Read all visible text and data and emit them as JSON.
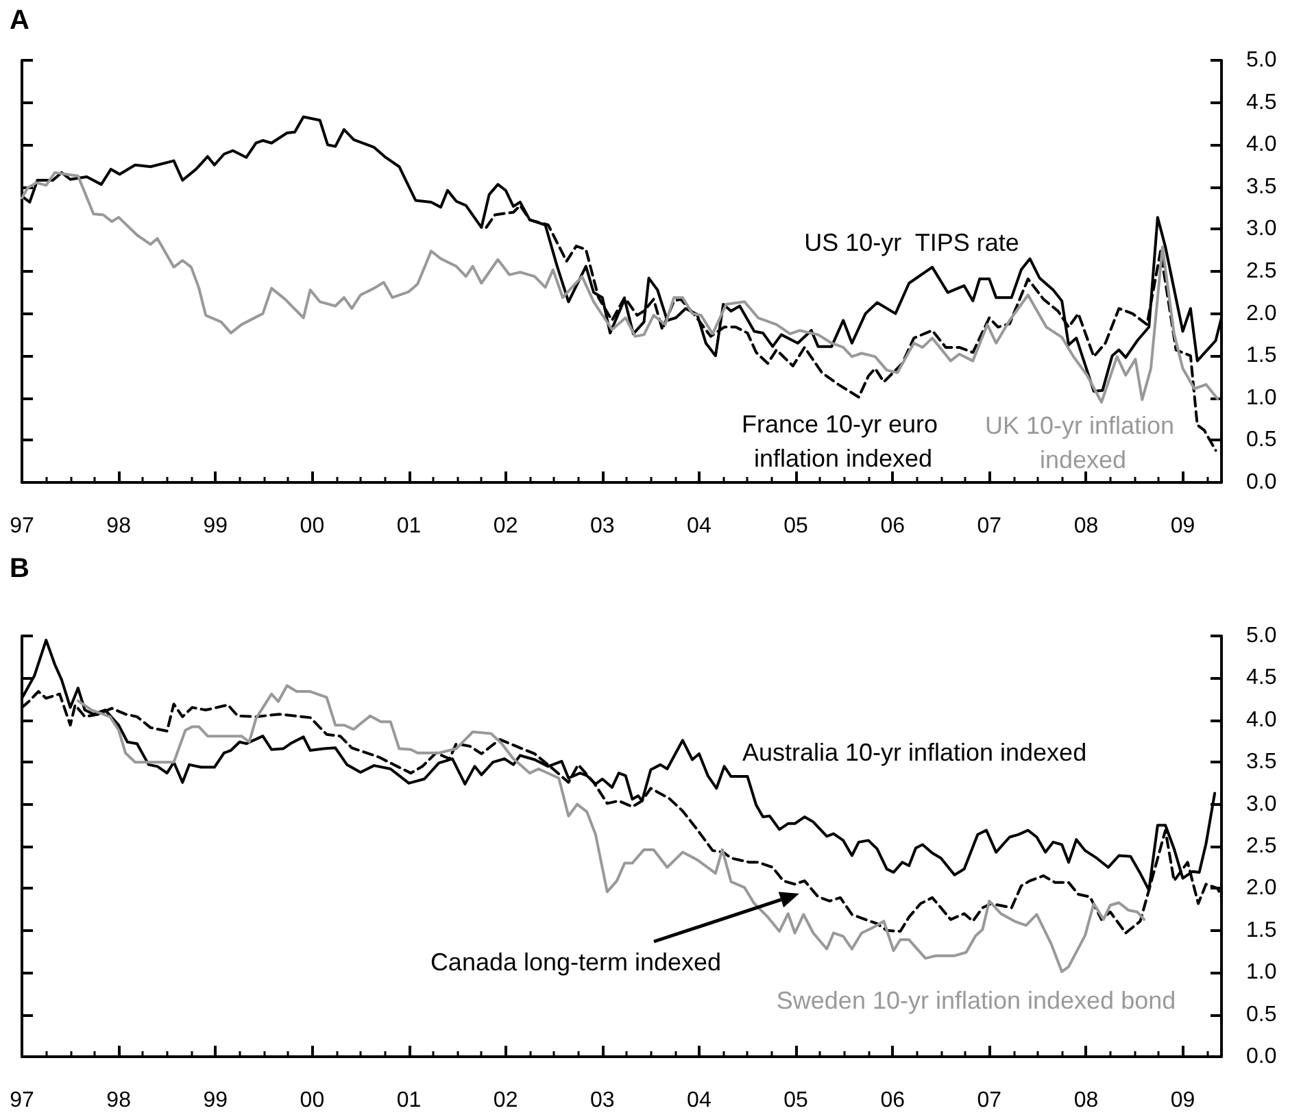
{
  "chart_data": [
    {
      "type": "line",
      "title": "A",
      "xlim": [
        1997,
        2009.4
      ],
      "xticks": [
        {
          "value": 1997,
          "label": "97"
        },
        {
          "value": 1998,
          "label": "98"
        },
        {
          "value": 1999,
          "label": "99"
        },
        {
          "value": 2000,
          "label": "00"
        },
        {
          "value": 2001,
          "label": "01"
        },
        {
          "value": 2002,
          "label": "02"
        },
        {
          "value": 2003,
          "label": "03"
        },
        {
          "value": 2004,
          "label": "04"
        },
        {
          "value": 2005,
          "label": "05"
        },
        {
          "value": 2006,
          "label": "06"
        },
        {
          "value": 2007,
          "label": "07"
        },
        {
          "value": 2008,
          "label": "08"
        },
        {
          "value": 2009,
          "label": "09"
        }
      ],
      "ylim": [
        0,
        5
      ],
      "yticks": [
        {
          "value": 0,
          "label": "0.0"
        },
        {
          "value": 0.5,
          "label": "0.5"
        },
        {
          "value": 1,
          "label": "1.0"
        },
        {
          "value": 1.5,
          "label": "1.5"
        },
        {
          "value": 2,
          "label": "2.0"
        },
        {
          "value": 2.5,
          "label": "2.5"
        },
        {
          "value": 3,
          "label": "3.0"
        },
        {
          "value": 3.5,
          "label": "3.5"
        },
        {
          "value": 4,
          "label": "4.0"
        },
        {
          "value": 4.5,
          "label": "4.5"
        },
        {
          "value": 5,
          "label": "5.0"
        }
      ],
      "grid": false,
      "legend": false,
      "series": [
        {
          "name": "US 10-yr  TIPS rate",
          "color": "#000000",
          "line_style": "solid",
          "x": [
            1997.0,
            1997.08,
            1997.16,
            1997.32,
            1997.41,
            1997.5,
            1997.67,
            1997.82,
            1997.92,
            1998.01,
            1998.17,
            1998.33,
            1998.57,
            1998.66,
            1998.8,
            1998.92,
            1998.99,
            1999.09,
            1999.18,
            1999.32,
            1999.42,
            1999.49,
            1999.58,
            1999.74,
            1999.82,
            1999.91,
            2000.08,
            2000.16,
            2000.24,
            2000.33,
            2000.43,
            2000.64,
            2000.76,
            2000.9,
            2001.07,
            2001.23,
            2001.33,
            2001.4,
            2001.49,
            2001.59,
            2001.75,
            2001.83,
            2001.92,
            2002.0,
            2002.08,
            2002.15,
            2002.25,
            2002.41,
            2002.53,
            2002.65,
            2002.83,
            2002.91,
            2003.0,
            2003.08,
            2003.23,
            2003.32,
            2003.43,
            2003.48,
            2003.57,
            2003.67,
            2003.76,
            2003.86,
            2003.98,
            2004.07,
            2004.17,
            2004.25,
            2004.33,
            2004.42,
            2004.57,
            2004.66,
            2004.76,
            2004.85,
            2005.02,
            2005.16,
            2005.23,
            2005.37,
            2005.49,
            2005.58,
            2005.72,
            2005.84,
            2006.03,
            2006.17,
            2006.41,
            2006.57,
            2006.74,
            2006.83,
            2006.9,
            2007.0,
            2007.07,
            2007.23,
            2007.33,
            2007.42,
            2007.52,
            2007.66,
            2007.75,
            2007.82,
            2007.9,
            2008.08,
            2008.17,
            2008.27,
            2008.34,
            2008.41,
            2008.53,
            2008.65,
            2008.74,
            2008.82,
            2009.0,
            2009.08,
            2009.15,
            2009.34,
            2009.4
          ],
          "values": [
            3.39,
            3.32,
            3.58,
            3.58,
            3.67,
            3.59,
            3.62,
            3.53,
            3.71,
            3.65,
            3.76,
            3.74,
            3.81,
            3.58,
            3.71,
            3.86,
            3.76,
            3.89,
            3.93,
            3.85,
            4.02,
            4.05,
            4.02,
            4.14,
            4.15,
            4.33,
            4.29,
            4.0,
            3.98,
            4.18,
            4.06,
            3.97,
            3.85,
            3.74,
            3.34,
            3.32,
            3.26,
            3.46,
            3.33,
            3.28,
            3.02,
            3.41,
            3.53,
            3.46,
            3.27,
            3.32,
            3.11,
            3.05,
            2.57,
            2.14,
            2.56,
            2.25,
            2.19,
            1.77,
            2.17,
            1.76,
            1.9,
            2.42,
            2.28,
            1.92,
            1.95,
            2.06,
            1.99,
            1.65,
            1.5,
            2.11,
            2.03,
            2.09,
            1.79,
            1.77,
            1.61,
            1.75,
            1.65,
            1.8,
            1.61,
            1.61,
            1.92,
            1.65,
            2.0,
            2.13,
            2.0,
            2.36,
            2.55,
            2.25,
            2.33,
            2.15,
            2.41,
            2.41,
            2.19,
            2.19,
            2.52,
            2.65,
            2.42,
            2.28,
            2.15,
            1.63,
            1.71,
            1.08,
            1.09,
            1.5,
            1.57,
            1.48,
            1.68,
            1.84,
            3.14,
            2.79,
            1.79,
            2.06,
            1.44,
            1.68,
            1.95
          ]
        },
        {
          "name": "France 10-yr euro inflation indexed",
          "color": "#000000",
          "line_style": "dashed",
          "x": [
            2001.8,
            2001.89,
            2002.08,
            2002.15,
            2002.25,
            2002.44,
            2002.63,
            2002.73,
            2002.83,
            2002.96,
            2003.1,
            2003.23,
            2003.36,
            2003.43,
            2003.53,
            2003.62,
            2003.74,
            2003.81,
            2003.95,
            2004.12,
            2004.26,
            2004.38,
            2004.5,
            2004.59,
            2004.71,
            2004.8,
            2004.97,
            2005.09,
            2005.27,
            2005.44,
            2005.65,
            2005.75,
            2005.82,
            2005.91,
            2006.1,
            2006.22,
            2006.41,
            2006.55,
            2006.69,
            2006.83,
            2007.0,
            2007.09,
            2007.21,
            2007.4,
            2007.56,
            2007.71,
            2007.82,
            2007.92,
            2008.08,
            2008.2,
            2008.34,
            2008.48,
            2008.63,
            2008.77,
            2008.93,
            2009.08,
            2009.15,
            2009.22,
            2009.34
          ],
          "values": [
            3.02,
            3.17,
            3.2,
            3.28,
            3.11,
            3.05,
            2.62,
            2.8,
            2.76,
            2.19,
            1.92,
            2.19,
            1.98,
            2.03,
            2.17,
            1.81,
            2.15,
            2.17,
            1.99,
            1.73,
            1.84,
            1.84,
            1.77,
            1.54,
            1.41,
            1.57,
            1.38,
            1.6,
            1.3,
            1.16,
            1.01,
            1.26,
            1.35,
            1.19,
            1.41,
            1.71,
            1.8,
            1.6,
            1.6,
            1.54,
            1.95,
            1.84,
            1.88,
            2.41,
            2.17,
            2.03,
            1.84,
            2.0,
            1.49,
            1.65,
            2.06,
            2.0,
            1.87,
            2.74,
            1.57,
            1.5,
            0.68,
            0.62,
            0.38
          ]
        },
        {
          "name": "UK 10-yr inflation indexed",
          "color": "#999999",
          "line_style": "solid",
          "x": [
            1997.0,
            1997.06,
            1997.15,
            1997.25,
            1997.34,
            1997.58,
            1997.74,
            1997.84,
            1997.93,
            1998.0,
            1998.19,
            1998.33,
            1998.4,
            1998.57,
            1998.66,
            1998.75,
            1998.83,
            1998.9,
            1999.06,
            1999.16,
            1999.27,
            1999.49,
            1999.58,
            1999.72,
            1999.91,
            1999.98,
            2000.08,
            2000.24,
            2000.33,
            2000.41,
            2000.5,
            2000.64,
            2000.74,
            2000.83,
            2001.0,
            2001.09,
            2001.23,
            2001.33,
            2001.49,
            2001.59,
            2001.66,
            2001.75,
            2001.92,
            2002.04,
            2002.15,
            2002.3,
            2002.41,
            2002.49,
            2002.59,
            2002.79,
            2002.91,
            2003.1,
            2003.24,
            2003.34,
            2003.43,
            2003.53,
            2003.65,
            2003.74,
            2003.83,
            2003.93,
            2004.02,
            2004.14,
            2004.28,
            2004.47,
            2004.61,
            2004.8,
            2004.94,
            2005.04,
            2005.23,
            2005.37,
            2005.49,
            2005.58,
            2005.68,
            2005.82,
            2005.94,
            2006.05,
            2006.22,
            2006.31,
            2006.41,
            2006.6,
            2006.69,
            2006.83,
            2006.98,
            2007.07,
            2007.21,
            2007.4,
            2007.59,
            2007.75,
            2007.87,
            2008.01,
            2008.16,
            2008.32,
            2008.41,
            2008.51,
            2008.58,
            2008.67,
            2008.79,
            2008.91,
            2009.0,
            2009.12,
            2009.24,
            2009.36
          ],
          "values": [
            3.37,
            3.49,
            3.55,
            3.52,
            3.67,
            3.63,
            3.18,
            3.17,
            3.09,
            3.14,
            2.93,
            2.82,
            2.89,
            2.55,
            2.63,
            2.55,
            2.3,
            1.98,
            1.9,
            1.77,
            1.87,
            2.0,
            2.3,
            2.17,
            1.95,
            2.28,
            2.14,
            2.09,
            2.19,
            2.06,
            2.22,
            2.3,
            2.37,
            2.19,
            2.26,
            2.35,
            2.74,
            2.65,
            2.56,
            2.44,
            2.56,
            2.36,
            2.64,
            2.46,
            2.49,
            2.44,
            2.31,
            2.52,
            2.19,
            2.44,
            2.14,
            1.81,
            1.95,
            1.73,
            1.75,
            1.98,
            1.87,
            2.19,
            2.19,
            2.0,
            1.98,
            1.76,
            2.11,
            2.14,
            1.95,
            1.87,
            1.76,
            1.8,
            1.75,
            1.65,
            1.6,
            1.49,
            1.53,
            1.49,
            1.33,
            1.3,
            1.65,
            1.6,
            1.71,
            1.44,
            1.52,
            1.44,
            1.87,
            1.65,
            1.92,
            2.22,
            1.84,
            1.72,
            1.49,
            1.27,
            0.95,
            1.49,
            1.27,
            1.46,
            0.98,
            1.35,
            2.79,
            1.76,
            1.35,
            1.11,
            1.16,
            0.99
          ]
        }
      ]
    },
    {
      "type": "line",
      "title": "B",
      "xlim": [
        1997,
        2009.4
      ],
      "xticks": [
        {
          "value": 1997,
          "label": "97"
        },
        {
          "value": 1998,
          "label": "98"
        },
        {
          "value": 1999,
          "label": "99"
        },
        {
          "value": 2000,
          "label": "00"
        },
        {
          "value": 2001,
          "label": "01"
        },
        {
          "value": 2002,
          "label": "02"
        },
        {
          "value": 2003,
          "label": "03"
        },
        {
          "value": 2004,
          "label": "04"
        },
        {
          "value": 2005,
          "label": "05"
        },
        {
          "value": 2006,
          "label": "06"
        },
        {
          "value": 2007,
          "label": "07"
        },
        {
          "value": 2008,
          "label": "08"
        },
        {
          "value": 2009,
          "label": "09"
        }
      ],
      "ylim": [
        0,
        5
      ],
      "yticks": [
        {
          "value": 0,
          "label": "0.0"
        },
        {
          "value": 0.5,
          "label": "0.5"
        },
        {
          "value": 1,
          "label": "1.0"
        },
        {
          "value": 1.5,
          "label": "1.5"
        },
        {
          "value": 2,
          "label": "2.0"
        },
        {
          "value": 2.5,
          "label": "2.5"
        },
        {
          "value": 3,
          "label": "3.0"
        },
        {
          "value": 3.5,
          "label": "3.5"
        },
        {
          "value": 4,
          "label": "4.0"
        },
        {
          "value": 4.5,
          "label": "4.5"
        },
        {
          "value": 5,
          "label": "5.0"
        }
      ],
      "grid": false,
      "legend": false,
      "series": [
        {
          "name": "Australia 10-yr inflation indexed",
          "color": "#000000",
          "line_style": "solid",
          "x": [
            1997.0,
            1997.13,
            1997.25,
            1997.34,
            1997.41,
            1997.5,
            1997.58,
            1997.65,
            1997.74,
            1997.86,
            1998.0,
            1998.09,
            1998.19,
            1998.31,
            1998.4,
            1998.5,
            1998.57,
            1998.66,
            1998.73,
            1998.85,
            1998.99,
            1999.09,
            1999.16,
            1999.25,
            1999.32,
            1999.49,
            1999.58,
            1999.7,
            1999.79,
            1999.91,
            1999.98,
            2000.12,
            2000.24,
            2000.36,
            2000.5,
            2000.64,
            2000.81,
            2000.9,
            2001.0,
            2001.16,
            2001.31,
            2001.45,
            2001.58,
            2001.68,
            2001.75,
            2001.87,
            2001.99,
            2002.08,
            2002.15,
            2002.3,
            2002.44,
            2002.58,
            2002.65,
            2002.77,
            2002.84,
            2002.93,
            2003.0,
            2003.1,
            2003.17,
            2003.24,
            2003.31,
            2003.37,
            2003.41,
            2003.5,
            2003.6,
            2003.67,
            2003.83,
            2003.93,
            2004.0,
            2004.09,
            2004.18,
            2004.26,
            2004.33,
            2004.5,
            2004.59,
            2004.66,
            2004.73,
            2004.83,
            2004.92,
            2004.99,
            2005.09,
            2005.18,
            2005.32,
            2005.39,
            2005.49,
            2005.58,
            2005.65,
            2005.75,
            2005.84,
            2005.94,
            2006.01,
            2006.1,
            2006.17,
            2006.24,
            2006.31,
            2006.41,
            2006.5,
            2006.64,
            2006.74,
            2006.88,
            2006.97,
            2007.07,
            2007.21,
            2007.3,
            2007.4,
            2007.49,
            2007.58,
            2007.66,
            2007.75,
            2007.82,
            2007.9,
            2007.99,
            2008.11,
            2008.23,
            2008.34,
            2008.46,
            2008.56,
            2008.65,
            2008.74,
            2008.82,
            2008.91,
            2009.0,
            2009.1,
            2009.17,
            2009.24,
            2009.33
          ],
          "values": [
            4.26,
            4.53,
            4.95,
            4.66,
            4.48,
            4.15,
            4.38,
            4.12,
            4.07,
            4.12,
            3.94,
            3.74,
            3.72,
            3.47,
            3.45,
            3.37,
            3.5,
            3.26,
            3.47,
            3.44,
            3.44,
            3.61,
            3.64,
            3.74,
            3.72,
            3.81,
            3.65,
            3.66,
            3.73,
            3.8,
            3.64,
            3.66,
            3.67,
            3.47,
            3.38,
            3.46,
            3.42,
            3.34,
            3.25,
            3.3,
            3.49,
            3.54,
            3.24,
            3.45,
            3.35,
            3.5,
            3.54,
            3.47,
            3.58,
            3.53,
            3.45,
            3.51,
            3.31,
            3.37,
            3.34,
            3.24,
            3.3,
            3.2,
            3.37,
            3.34,
            3.06,
            3.1,
            3.04,
            3.41,
            3.47,
            3.42,
            3.76,
            3.53,
            3.6,
            3.34,
            3.19,
            3.45,
            3.33,
            3.33,
            2.99,
            2.85,
            2.86,
            2.7,
            2.77,
            2.77,
            2.85,
            2.79,
            2.62,
            2.65,
            2.57,
            2.39,
            2.55,
            2.57,
            2.47,
            2.23,
            2.19,
            2.31,
            2.27,
            2.48,
            2.52,
            2.42,
            2.36,
            2.16,
            2.23,
            2.64,
            2.69,
            2.43,
            2.61,
            2.64,
            2.69,
            2.61,
            2.43,
            2.55,
            2.52,
            2.31,
            2.58,
            2.45,
            2.36,
            2.25,
            2.39,
            2.38,
            2.18,
            1.98,
            2.75,
            2.75,
            2.47,
            2.12,
            2.2,
            2.19,
            2.53,
            3.13
          ]
        },
        {
          "name": "Canada long-term indexed",
          "color": "#000000",
          "line_style": "dashed",
          "x": [
            1997.0,
            1997.08,
            1997.17,
            1997.25,
            1997.39,
            1997.5,
            1997.55,
            1997.65,
            1997.79,
            1997.93,
            1998.07,
            1998.19,
            1998.33,
            1998.5,
            1998.57,
            1998.66,
            1998.76,
            1998.9,
            1999.13,
            1999.23,
            1999.42,
            1999.66,
            1999.98,
            2000.15,
            2000.29,
            2000.41,
            2000.69,
            2000.88,
            2001.02,
            2001.14,
            2001.28,
            2001.42,
            2001.49,
            2001.63,
            2001.75,
            2001.94,
            2002.15,
            2002.3,
            2002.49,
            2002.65,
            2002.75,
            2002.91,
            2003.05,
            2003.17,
            2003.31,
            2003.41,
            2003.5,
            2003.69,
            2003.83,
            2003.98,
            2004.14,
            2004.25,
            2004.33,
            2004.52,
            2004.61,
            2004.76,
            2004.87,
            2004.99,
            2005.09,
            2005.23,
            2005.35,
            2005.46,
            2005.58,
            2005.72,
            2005.84,
            2005.94,
            2006.08,
            2006.17,
            2006.29,
            2006.41,
            2006.5,
            2006.6,
            2006.74,
            2006.83,
            2006.93,
            2007.02,
            2007.23,
            2007.33,
            2007.42,
            2007.56,
            2007.68,
            2007.82,
            2007.92,
            2008.04,
            2008.16,
            2008.25,
            2008.41,
            2008.56,
            2008.65,
            2008.82,
            2008.91,
            2009.05,
            2009.16,
            2009.24,
            2009.36,
            2009.4
          ],
          "values": [
            4.15,
            4.23,
            4.34,
            4.26,
            4.31,
            3.94,
            4.18,
            4.04,
            4.07,
            4.14,
            4.07,
            4.04,
            3.91,
            3.87,
            4.19,
            4.04,
            4.15,
            4.12,
            4.18,
            4.05,
            4.04,
            4.07,
            4.03,
            3.83,
            3.81,
            3.67,
            3.56,
            3.45,
            3.37,
            3.45,
            3.61,
            3.54,
            3.72,
            3.69,
            3.6,
            3.77,
            3.67,
            3.6,
            3.42,
            3.26,
            3.47,
            3.26,
            3.01,
            3.04,
            2.97,
            3.04,
            3.19,
            3.07,
            2.92,
            2.7,
            2.45,
            2.43,
            2.36,
            2.31,
            2.31,
            2.25,
            2.09,
            2.05,
            2.09,
            1.9,
            1.85,
            1.89,
            1.69,
            1.63,
            1.58,
            1.5,
            1.49,
            1.66,
            1.82,
            1.89,
            1.77,
            1.63,
            1.7,
            1.61,
            1.77,
            1.82,
            1.77,
            2.03,
            2.09,
            2.15,
            2.07,
            2.07,
            1.93,
            1.9,
            1.63,
            1.72,
            1.47,
            1.61,
            1.98,
            2.69,
            2.09,
            2.31,
            1.82,
            2.05,
            2.0,
            1.9
          ]
        },
        {
          "name": "Sweden 10-yr inflation indexed bond",
          "color": "#999999",
          "line_style": "solid",
          "x": [
            1997.58,
            1997.72,
            1997.91,
            1998.0,
            1998.07,
            1998.17,
            1998.57,
            1998.69,
            1998.76,
            1998.83,
            1998.92,
            1999.27,
            1999.35,
            1999.42,
            1999.58,
            1999.65,
            1999.74,
            1999.84,
            1999.98,
            2000.15,
            2000.24,
            2000.33,
            2000.43,
            2000.6,
            2000.71,
            2000.81,
            2000.9,
            2001.02,
            2001.09,
            2001.31,
            2001.49,
            2001.66,
            2001.85,
            2001.96,
            2002.08,
            2002.25,
            2002.34,
            2002.55,
            2002.65,
            2002.74,
            2002.84,
            2002.93,
            2003.05,
            2003.15,
            2003.23,
            2003.31,
            2003.43,
            2003.53,
            2003.67,
            2003.83,
            2003.98,
            2004.17,
            2004.24,
            2004.33,
            2004.47,
            2004.57,
            2004.71,
            2004.83,
            2004.92,
            2004.99,
            2005.08,
            2005.18,
            2005.32,
            2005.39,
            2005.49,
            2005.58,
            2005.68,
            2005.79,
            2005.91,
            2006.01,
            2006.08,
            2006.17,
            2006.34,
            2006.45,
            2006.64,
            2006.76,
            2006.86,
            2006.93,
            2007.0,
            2007.12,
            2007.26,
            2007.38,
            2007.49,
            2007.64,
            2007.75,
            2007.82,
            2007.99,
            2008.08,
            2008.18,
            2008.25,
            2008.34,
            2008.44,
            2008.53,
            2008.6
          ],
          "values": [
            4.23,
            4.12,
            4.04,
            3.88,
            3.61,
            3.5,
            3.5,
            3.88,
            3.92,
            3.92,
            3.81,
            3.81,
            3.74,
            4.02,
            4.31,
            4.22,
            4.41,
            4.34,
            4.34,
            4.27,
            3.94,
            3.94,
            3.89,
            4.05,
            3.98,
            3.98,
            3.66,
            3.65,
            3.61,
            3.61,
            3.66,
            3.86,
            3.84,
            3.72,
            3.54,
            3.37,
            3.42,
            3.31,
            2.86,
            3.0,
            2.91,
            2.64,
            1.96,
            2.09,
            2.3,
            2.3,
            2.46,
            2.46,
            2.25,
            2.43,
            2.34,
            2.18,
            2.46,
            2.08,
            2.01,
            1.82,
            1.66,
            1.49,
            1.7,
            1.47,
            1.69,
            1.47,
            1.28,
            1.47,
            1.43,
            1.28,
            1.47,
            1.53,
            1.61,
            1.26,
            1.39,
            1.39,
            1.17,
            1.2,
            1.2,
            1.24,
            1.44,
            1.51,
            1.85,
            1.7,
            1.61,
            1.56,
            1.69,
            1.34,
            1.01,
            1.07,
            1.44,
            1.82,
            1.63,
            1.8,
            1.83,
            1.74,
            1.72,
            1.63
          ]
        }
      ]
    }
  ]
}
